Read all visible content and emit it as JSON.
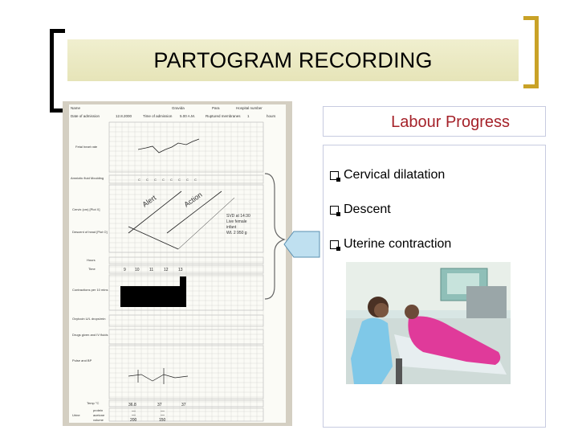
{
  "slide": {
    "title": "PARTOGRAM RECORDING",
    "panel_title": "Labour Progress",
    "items": [
      {
        "label": "Cervical dilatation"
      },
      {
        "label": "Descent"
      },
      {
        "label": "Uterine contraction"
      }
    ]
  },
  "partogram": {
    "header": [
      "Name",
      "Gravida",
      "Para",
      "Hospital number"
    ],
    "admission_labels": [
      "Date of admission",
      "Time of admission",
      "Ruptured membranes"
    ],
    "admission_values": [
      "12.8.2000",
      "5.00 A.M.",
      "1",
      "hours"
    ],
    "side_labels": [
      "Fetal heart rate",
      "Amniotic fluid Moulding",
      "Cervix (cm) [Plot X]",
      "Descent of head [Plot O]",
      "Hours",
      "Time",
      "Contractions per 10 mins",
      "Oxytocin U/L drops/min",
      "Drugs given and IV fluids",
      "Pulse and BP",
      "Temp °C",
      "Urine"
    ],
    "urine_rows": [
      "protein",
      "acetone",
      "volume"
    ],
    "time_values": [
      "9",
      "10",
      "11",
      "12",
      "13"
    ],
    "alert_label": "Alert",
    "action_label": "Action",
    "annotation": [
      "SVD at 14:30",
      "Live female",
      "infant",
      "Wt. 2 950 g"
    ],
    "temp_values": [
      "36.8",
      "37",
      "37"
    ],
    "urine_values": [
      "—",
      "—",
      "—",
      "—",
      "200",
      "150"
    ]
  }
}
